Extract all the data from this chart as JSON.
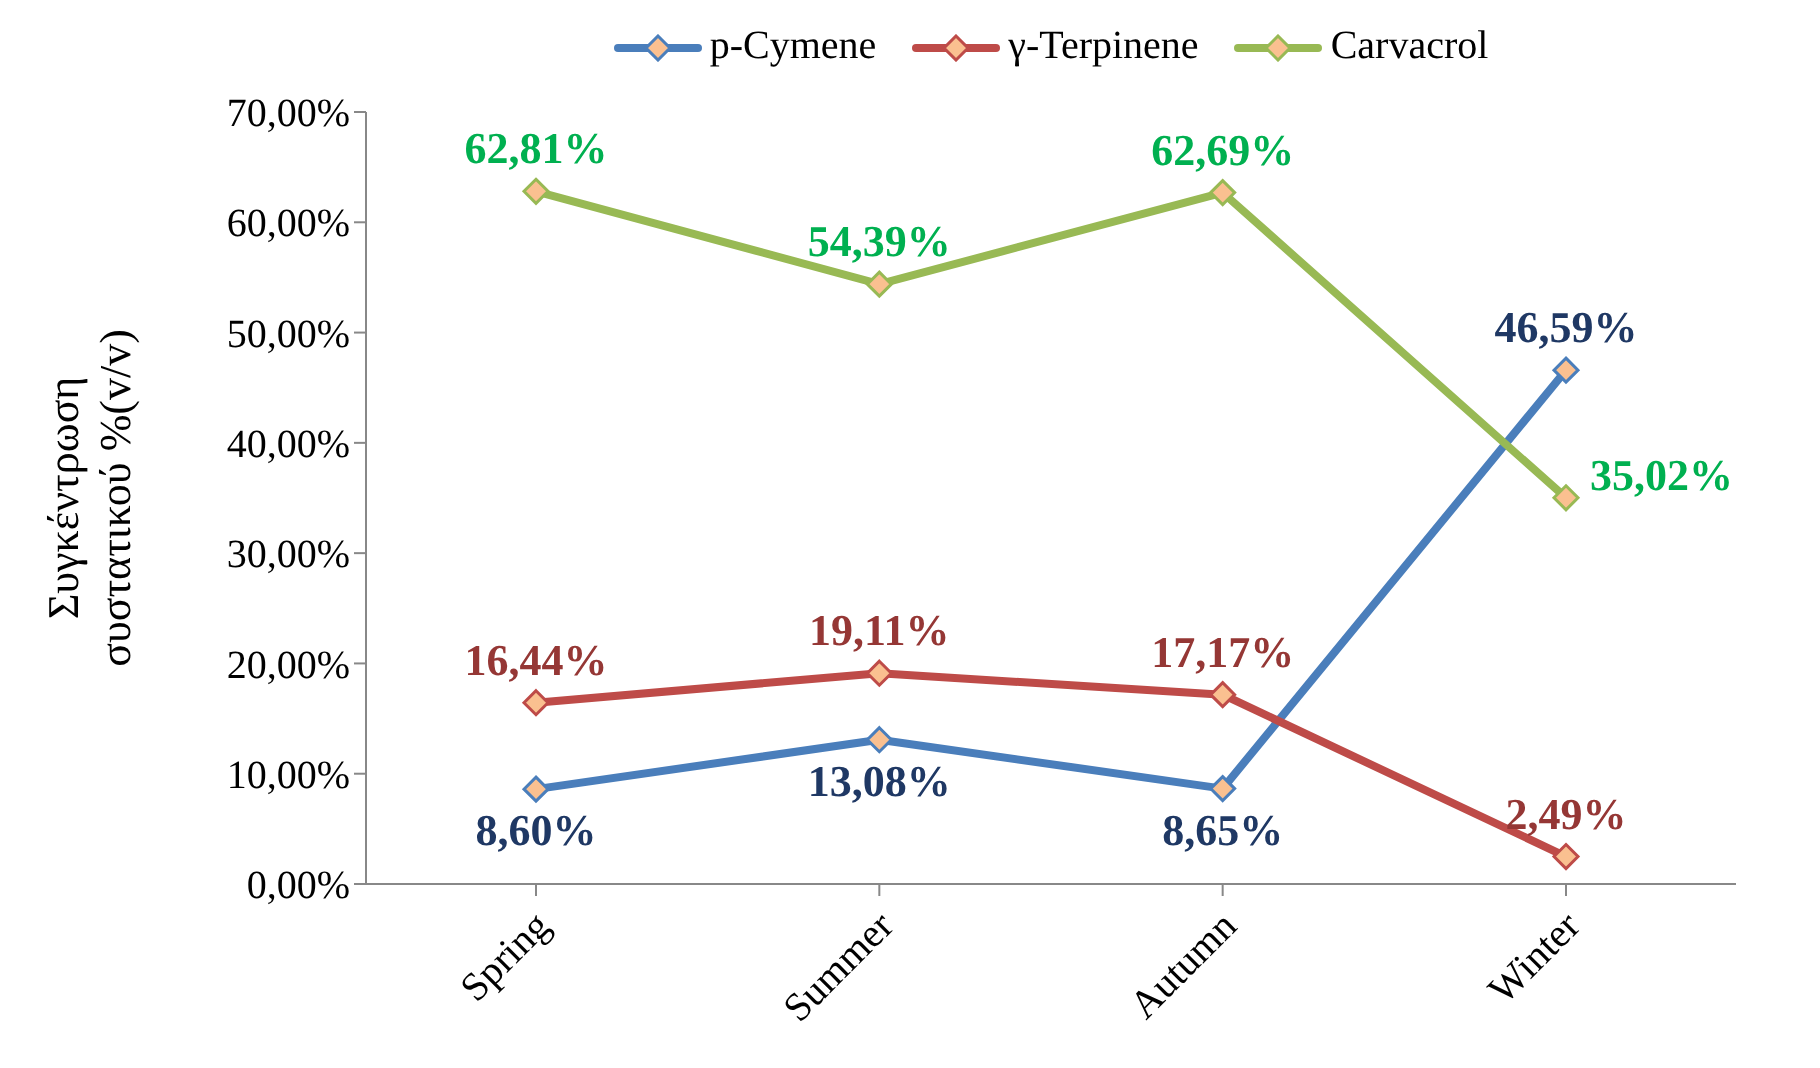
{
  "chart_data": {
    "type": "line",
    "ylabel": "Συγκέντρωση συστατικού %(v/v)",
    "categories": [
      "Spring",
      "Summer",
      "Autumn",
      "Winter"
    ],
    "series": [
      {
        "name": "p-Cymene",
        "color": "#4a7ebb",
        "values": [
          8.6,
          13.08,
          8.65,
          46.59
        ],
        "value_labels": [
          "8,60%",
          "13,08%",
          "8,65%",
          "46,59%"
        ]
      },
      {
        "name": "γ-Terpinene",
        "color": "#be4b48",
        "values": [
          16.44,
          19.11,
          17.17,
          2.49
        ],
        "value_labels": [
          "16,44%",
          "19,11%",
          "17,17%",
          "2,49%"
        ]
      },
      {
        "name": "Carvacrol",
        "color": "#98b954",
        "values": [
          62.81,
          54.39,
          62.69,
          35.02
        ],
        "value_labels": [
          "62,81%",
          "54,39%",
          "62,69%",
          "35,02%"
        ]
      }
    ],
    "ylim": [
      0,
      70
    ],
    "yticks": [
      {
        "value": 0,
        "label": "0,00%"
      },
      {
        "value": 10,
        "label": "10,00%"
      },
      {
        "value": 20,
        "label": "20,00%"
      },
      {
        "value": 30,
        "label": "30,00%"
      },
      {
        "value": 40,
        "label": "40,00%"
      },
      {
        "value": 50,
        "label": "50,00%"
      },
      {
        "value": 60,
        "label": "60,00%"
      },
      {
        "value": 70,
        "label": "70,00%"
      }
    ],
    "grid": false,
    "legend": "top",
    "marker": "diamond",
    "line_style": "solid"
  }
}
